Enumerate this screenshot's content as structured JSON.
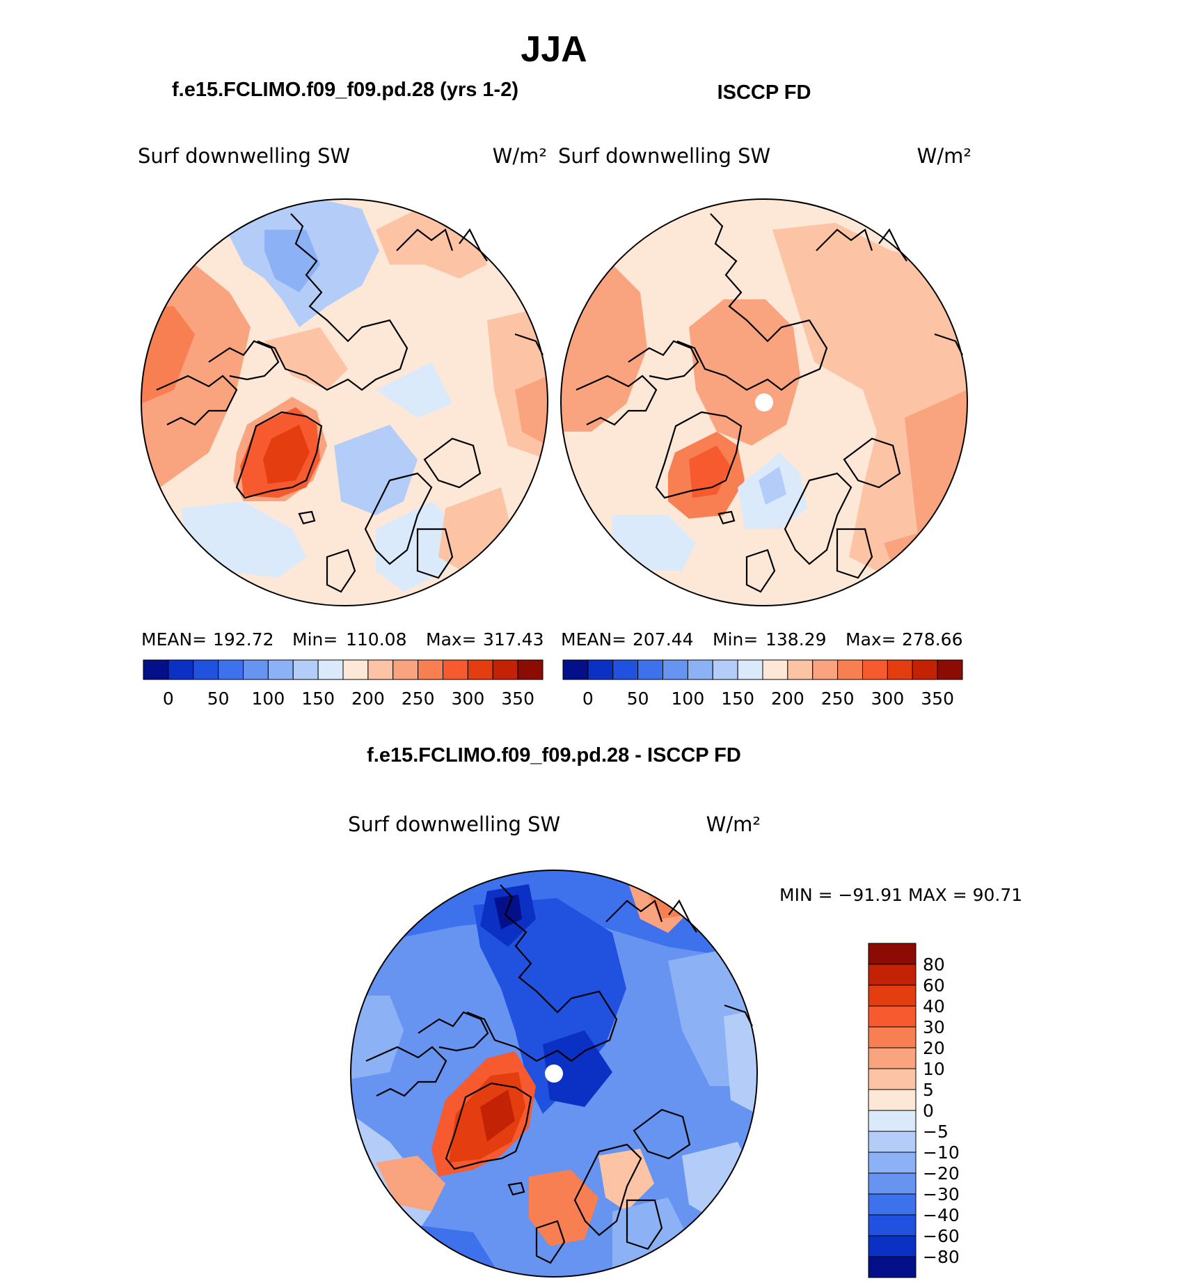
{
  "season": "JJA",
  "colors": {
    "positive_ramp": [
      "#fde8d8",
      "#fcc4a4",
      "#f9a47e",
      "#f77f52",
      "#f65a2e",
      "#e43d10",
      "#c42204",
      "#8c0b03"
    ],
    "negative_ramp": [
      "#daeafb",
      "#b3cdf8",
      "#8cb2f5",
      "#6694f0",
      "#3e72ec",
      "#2052df",
      "#0b31c4",
      "#040f8a"
    ],
    "land_outline": "#000000",
    "missing": "#ffffff"
  },
  "chart_data": [
    {
      "type": "heatmap",
      "projection": "north-polar-stereographic",
      "header": "f.e15.FCLIMO.f09_f09.pd.28 (yrs 1-2)",
      "title": "Surf downwelling SW",
      "units": "W/m²",
      "stats": {
        "mean_label": "MEAN=",
        "mean": "192.72",
        "min_label": "Min=",
        "min": "110.08",
        "max_label": "Max=",
        "max": "317.43"
      },
      "colorbar": {
        "orientation": "horizontal",
        "levels": [
          0,
          25,
          50,
          75,
          100,
          125,
          150,
          175,
          200,
          225,
          250,
          275,
          300,
          325,
          350
        ],
        "tick_labels": [
          "0",
          "50",
          "100",
          "150",
          "200",
          "250",
          "300",
          "350"
        ]
      }
    },
    {
      "type": "heatmap",
      "projection": "north-polar-stereographic",
      "header": "ISCCP FD",
      "title": "Surf downwelling SW",
      "units": "W/m²",
      "stats": {
        "mean_label": "MEAN=",
        "mean": "207.44",
        "min_label": "Min=",
        "min": "138.29",
        "max_label": "Max=",
        "max": "278.66"
      },
      "colorbar": {
        "orientation": "horizontal",
        "levels": [
          0,
          25,
          50,
          75,
          100,
          125,
          150,
          175,
          200,
          225,
          250,
          275,
          300,
          325,
          350
        ],
        "tick_labels": [
          "0",
          "50",
          "100",
          "150",
          "200",
          "250",
          "300",
          "350"
        ]
      }
    },
    {
      "type": "heatmap",
      "projection": "north-polar-stereographic",
      "header": "f.e15.FCLIMO.f09_f09.pd.28 - ISCCP FD",
      "title": "Surf downwelling SW",
      "units": "W/m²",
      "stats": {
        "text": "MIN = −91.91 MAX =   90.71",
        "min": -91.91,
        "max": 90.71
      },
      "colorbar": {
        "orientation": "vertical",
        "levels": [
          80,
          60,
          40,
          30,
          20,
          10,
          5,
          0,
          -5,
          -10,
          -20,
          -30,
          -40,
          -60,
          -80
        ],
        "tick_labels": [
          "80",
          "60",
          "40",
          "30",
          "20",
          "10",
          "5",
          "0",
          "−5",
          "−10",
          "−20",
          "−30",
          "−40",
          "−60",
          "−80"
        ]
      }
    }
  ]
}
